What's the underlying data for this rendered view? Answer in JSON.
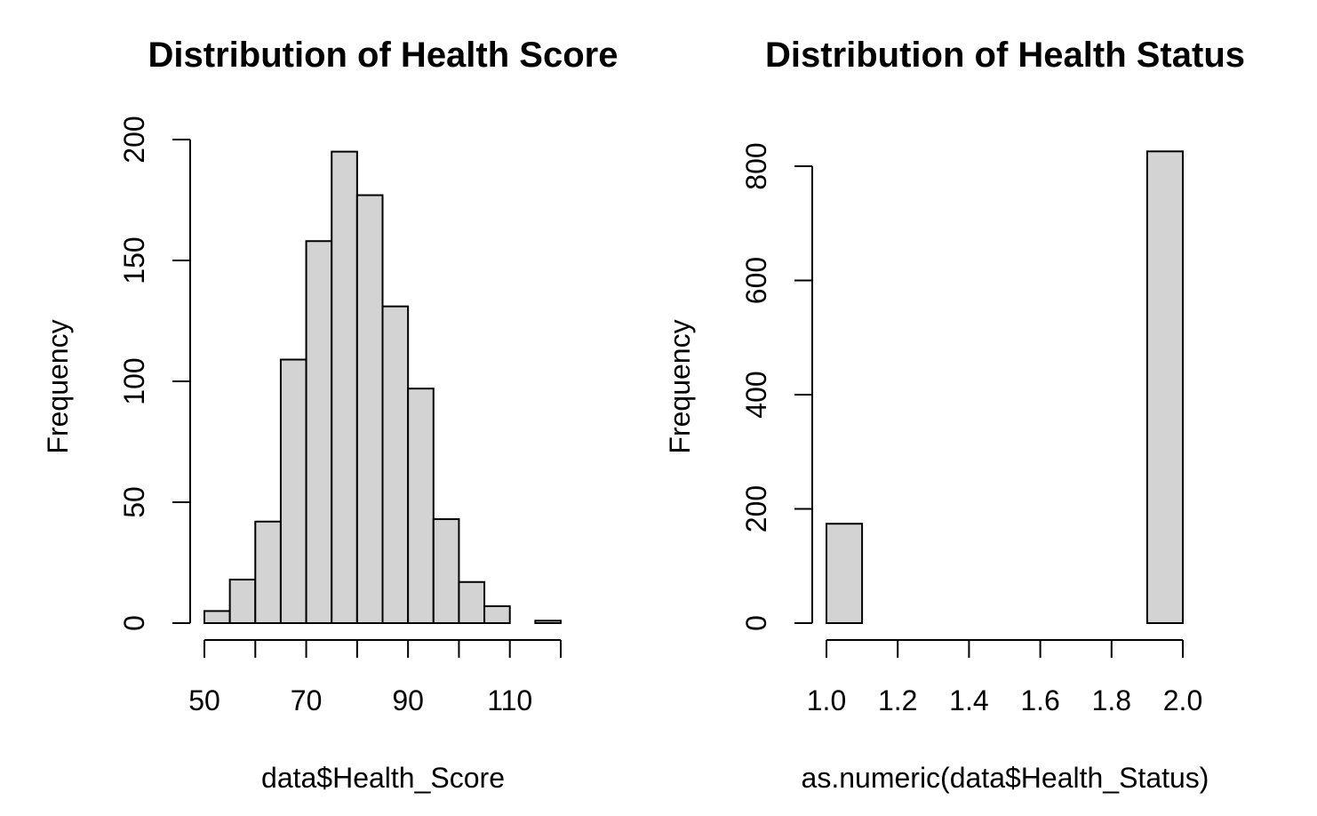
{
  "chart_data": [
    {
      "type": "bar",
      "title": "Distribution of Health Score",
      "xlabel": "data$Health_Score",
      "ylabel": "Frequency",
      "xlim": [
        50,
        120
      ],
      "ylim": [
        0,
        200
      ],
      "xticks": [
        50,
        60,
        70,
        80,
        90,
        100,
        110,
        120
      ],
      "xtick_labels": [
        "50",
        "70",
        "90",
        "110"
      ],
      "xtick_label_values": [
        50,
        70,
        90,
        110
      ],
      "yticks": [
        0,
        50,
        100,
        150,
        200
      ],
      "ytick_labels": [
        "0",
        "50",
        "100",
        "150",
        "200"
      ],
      "bins": [
        {
          "x0": 50,
          "x1": 55,
          "count": 5
        },
        {
          "x0": 55,
          "x1": 60,
          "count": 18
        },
        {
          "x0": 60,
          "x1": 65,
          "count": 42
        },
        {
          "x0": 65,
          "x1": 70,
          "count": 109
        },
        {
          "x0": 70,
          "x1": 75,
          "count": 158
        },
        {
          "x0": 75,
          "x1": 80,
          "count": 195
        },
        {
          "x0": 80,
          "x1": 85,
          "count": 177
        },
        {
          "x0": 85,
          "x1": 90,
          "count": 131
        },
        {
          "x0": 90,
          "x1": 95,
          "count": 97
        },
        {
          "x0": 95,
          "x1": 100,
          "count": 43
        },
        {
          "x0": 100,
          "x1": 105,
          "count": 17
        },
        {
          "x0": 105,
          "x1": 110,
          "count": 7
        },
        {
          "x0": 110,
          "x1": 115,
          "count": 0
        },
        {
          "x0": 115,
          "x1": 120,
          "count": 1
        }
      ],
      "bar_color": "#d3d3d3",
      "border_color": "#000000",
      "grid": false
    },
    {
      "type": "bar",
      "title": "Distribution of Health Status",
      "xlabel": "as.numeric(data$Health_Status)",
      "ylabel": "Frequency",
      "xlim": [
        1.0,
        2.0
      ],
      "ylim": [
        0,
        800
      ],
      "xticks": [
        1.0,
        1.2,
        1.4,
        1.6,
        1.8,
        2.0
      ],
      "xtick_labels": [
        "1.0",
        "1.2",
        "1.4",
        "1.6",
        "1.8",
        "2.0"
      ],
      "xtick_label_values": [
        1.0,
        1.2,
        1.4,
        1.6,
        1.8,
        2.0
      ],
      "yticks": [
        0,
        200,
        400,
        600,
        800
      ],
      "ytick_labels": [
        "0",
        "200",
        "400",
        "600",
        "800"
      ],
      "bins": [
        {
          "x0": 1.0,
          "x1": 1.1,
          "count": 174
        },
        {
          "x0": 1.1,
          "x1": 1.2,
          "count": 0
        },
        {
          "x0": 1.2,
          "x1": 1.3,
          "count": 0
        },
        {
          "x0": 1.3,
          "x1": 1.4,
          "count": 0
        },
        {
          "x0": 1.4,
          "x1": 1.5,
          "count": 0
        },
        {
          "x0": 1.5,
          "x1": 1.6,
          "count": 0
        },
        {
          "x0": 1.6,
          "x1": 1.7,
          "count": 0
        },
        {
          "x0": 1.7,
          "x1": 1.8,
          "count": 0
        },
        {
          "x0": 1.8,
          "x1": 1.9,
          "count": 0
        },
        {
          "x0": 1.9,
          "x1": 2.0,
          "count": 826
        }
      ],
      "bar_color": "#d3d3d3",
      "border_color": "#000000",
      "grid": false
    }
  ]
}
